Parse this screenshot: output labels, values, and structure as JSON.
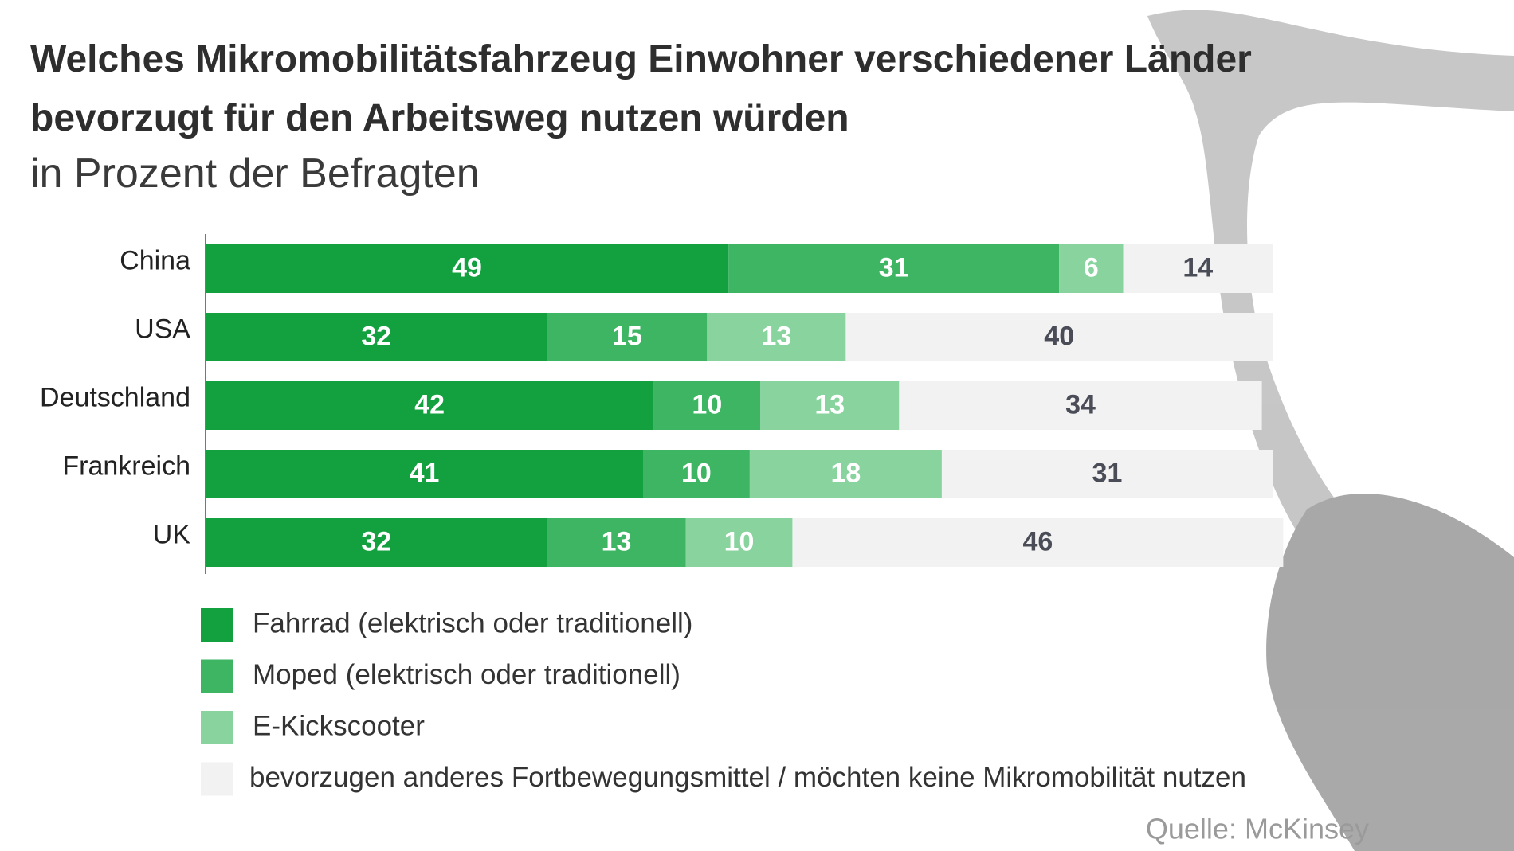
{
  "chart_data": {
    "type": "stacked-bar-horizontal",
    "title": "Welches Mikromobilitätsfahrzeug Einwohner verschiedener Länder bevorzugt für den Arbeitsweg nutzen würden",
    "subtitle": "in Prozent der Befragten",
    "source": "Quelle: McKinsey",
    "categories": [
      "China",
      "USA",
      "Deutschland",
      "Frankreich",
      "UK"
    ],
    "series": [
      {
        "name": "Fahrrad (elektrisch oder traditionell)",
        "color": "#13a13f",
        "label_color": "#ffffff",
        "values": [
          49,
          32,
          42,
          41,
          32
        ]
      },
      {
        "name": "Moped (elektrisch oder traditionell)",
        "color": "#3db563",
        "label_color": "#ffffff",
        "values": [
          31,
          15,
          10,
          10,
          13
        ]
      },
      {
        "name": "E-Kickscooter",
        "color": "#88d39e",
        "label_color": "#ffffff",
        "values": [
          6,
          13,
          13,
          18,
          10
        ]
      },
      {
        "name": "bevorzugen anderes Fortbewegungsmittel / möchten keine Mikromobilität nutzen",
        "color": "#f2f2f2",
        "label_color": "#4a4d57",
        "values": [
          14,
          40,
          34,
          31,
          46
        ]
      }
    ],
    "xlim": [
      0,
      100
    ]
  }
}
